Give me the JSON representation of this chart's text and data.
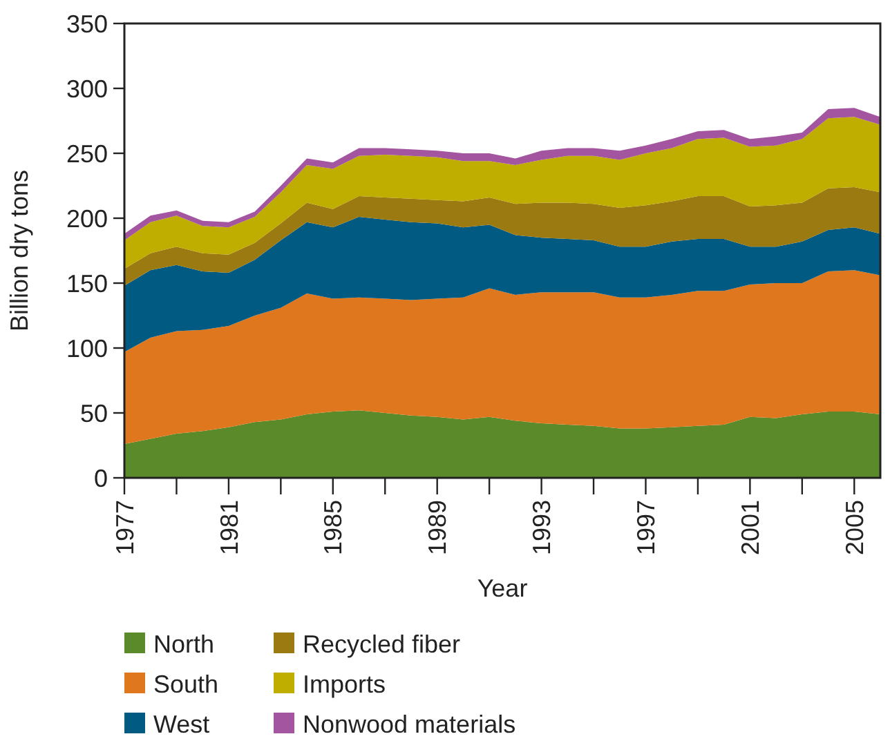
{
  "chart_data": {
    "type": "area",
    "stacked": true,
    "xlabel": "Year",
    "ylabel": "Billion dry tons",
    "x": [
      1977,
      1978,
      1979,
      1980,
      1981,
      1982,
      1983,
      1984,
      1985,
      1986,
      1987,
      1988,
      1989,
      1990,
      1991,
      1992,
      1993,
      1994,
      1995,
      1996,
      1997,
      1998,
      1999,
      2000,
      2001,
      2002,
      2003,
      2004,
      2005,
      2006
    ],
    "xlim": [
      1977,
      2006
    ],
    "xticks": [
      1977,
      {
        "value": 1979,
        "label": null
      },
      1981,
      {
        "value": 1983,
        "label": null
      },
      1985,
      {
        "value": 1987,
        "label": null
      },
      1989,
      {
        "value": 1991,
        "label": null
      },
      1993,
      {
        "value": 1995,
        "label": null
      },
      1997,
      {
        "value": 1999,
        "label": null
      },
      2001,
      {
        "value": 2003,
        "label": null
      },
      2005
    ],
    "ylim": [
      0,
      350
    ],
    "yticks": [
      0,
      50,
      100,
      150,
      200,
      250,
      300,
      350
    ],
    "grid": false,
    "legend": "bottom",
    "series": [
      {
        "name": "North",
        "color": "#5b8a2b",
        "values": [
          26,
          30,
          34,
          36,
          39,
          43,
          45,
          49,
          51,
          52,
          50,
          48,
          47,
          45,
          47,
          44,
          42,
          41,
          40,
          38,
          38,
          39,
          40,
          41,
          47,
          46,
          49,
          51,
          51,
          49
        ]
      },
      {
        "name": "South",
        "color": "#de771e",
        "values": [
          71,
          78,
          79,
          78,
          78,
          82,
          86,
          93,
          87,
          87,
          88,
          89,
          91,
          94,
          99,
          97,
          101,
          102,
          103,
          101,
          101,
          102,
          104,
          103,
          102,
          104,
          101,
          108,
          109,
          107
        ]
      },
      {
        "name": "West",
        "color": "#005a82",
        "values": [
          51,
          52,
          51,
          45,
          41,
          43,
          52,
          55,
          55,
          62,
          61,
          60,
          58,
          54,
          49,
          46,
          42,
          41,
          40,
          39,
          39,
          41,
          40,
          40,
          29,
          28,
          32,
          32,
          33,
          32
        ]
      },
      {
        "name": "Recycled fiber",
        "color": "#9c7a12",
        "values": [
          13,
          13,
          14,
          14,
          14,
          13,
          13,
          15,
          14,
          16,
          17,
          18,
          18,
          20,
          21,
          24,
          27,
          28,
          28,
          30,
          32,
          31,
          33,
          33,
          31,
          32,
          30,
          32,
          31,
          32
        ]
      },
      {
        "name": "Imports",
        "color": "#bfad00",
        "values": [
          22,
          24,
          24,
          21,
          21,
          20,
          24,
          29,
          31,
          31,
          33,
          33,
          33,
          31,
          28,
          30,
          33,
          36,
          37,
          37,
          40,
          41,
          44,
          45,
          46,
          46,
          49,
          54,
          54,
          52
        ]
      },
      {
        "name": "Nonwood materials",
        "color": "#a3559f",
        "values": [
          5,
          5,
          4,
          4,
          4,
          4,
          5,
          5,
          5,
          6,
          5,
          5,
          5,
          6,
          6,
          5,
          7,
          6,
          6,
          7,
          6,
          7,
          6,
          6,
          6,
          7,
          5,
          7,
          7,
          6
        ]
      }
    ]
  }
}
